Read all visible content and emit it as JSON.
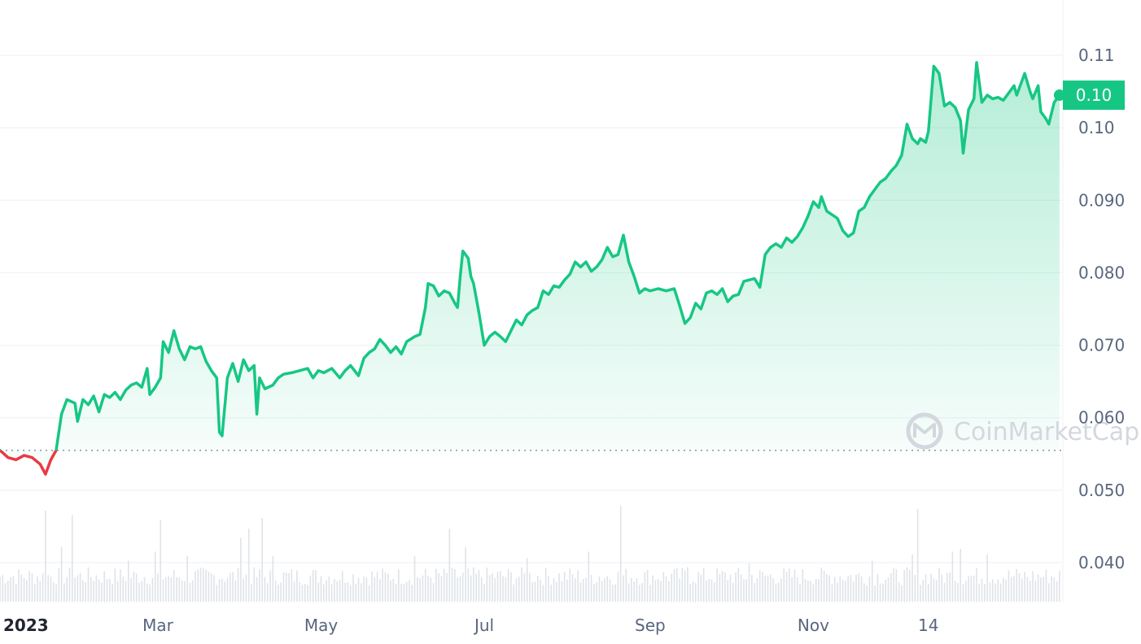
{
  "chart_data": {
    "type": "area",
    "watermark": "CoinMarketCap",
    "current_price_label": "0.10",
    "ylim": [
      0.035,
      0.1145
    ],
    "y_ticks": [
      {
        "value": 0.04,
        "label": "0.040"
      },
      {
        "value": 0.05,
        "label": "0.050"
      },
      {
        "value": 0.06,
        "label": "0.060"
      },
      {
        "value": 0.07,
        "label": "0.070"
      },
      {
        "value": 0.08,
        "label": "0.080"
      },
      {
        "value": 0.09,
        "label": "0.090"
      },
      {
        "value": 0.1,
        "label": "0.10"
      },
      {
        "value": 0.11,
        "label": "0.11"
      }
    ],
    "x_ticks": [
      {
        "day": 0,
        "label": "2023",
        "bold": true
      },
      {
        "day": 59,
        "label": "Mar",
        "bold": false
      },
      {
        "day": 120,
        "label": "May",
        "bold": false
      },
      {
        "day": 181,
        "label": "Jul",
        "bold": false
      },
      {
        "day": 243,
        "label": "Sep",
        "bold": false
      },
      {
        "day": 304,
        "label": "Nov",
        "bold": false
      },
      {
        "day": 347,
        "label": "14",
        "bold": false
      }
    ],
    "xlim": [
      0,
      386
    ],
    "baseline": 0.0555,
    "colors": {
      "up": "#16c784",
      "down": "#ea3943",
      "grid": "#eff2f5",
      "text": "#58667e"
    },
    "series": [
      {
        "points": [
          [
            0,
            0.0555
          ],
          [
            3,
            0.0545
          ],
          [
            6,
            0.0542
          ],
          [
            9,
            0.0548
          ],
          [
            12,
            0.0545
          ],
          [
            15,
            0.0536
          ],
          [
            17,
            0.0522
          ],
          [
            19,
            0.0542
          ],
          [
            21,
            0.0555
          ],
          [
            23,
            0.0605
          ],
          [
            25,
            0.0625
          ],
          [
            28,
            0.062
          ],
          [
            29,
            0.0595
          ],
          [
            31,
            0.0625
          ],
          [
            33,
            0.0618
          ],
          [
            35,
            0.063
          ],
          [
            37,
            0.0608
          ],
          [
            39,
            0.0632
          ],
          [
            41,
            0.0628
          ],
          [
            43,
            0.0635
          ],
          [
            45,
            0.0625
          ],
          [
            47,
            0.0638
          ],
          [
            49,
            0.0645
          ],
          [
            51,
            0.0648
          ],
          [
            53,
            0.0642
          ],
          [
            55,
            0.0668
          ],
          [
            56,
            0.0632
          ],
          [
            58,
            0.0642
          ],
          [
            60,
            0.0655
          ],
          [
            61,
            0.0705
          ],
          [
            63,
            0.069
          ],
          [
            65,
            0.072
          ],
          [
            67,
            0.0695
          ],
          [
            69,
            0.068
          ],
          [
            71,
            0.0698
          ],
          [
            73,
            0.0695
          ],
          [
            75,
            0.0698
          ],
          [
            77,
            0.0678
          ],
          [
            79,
            0.0665
          ],
          [
            81,
            0.0655
          ],
          [
            82,
            0.058
          ],
          [
            83,
            0.0575
          ],
          [
            85,
            0.0655
          ],
          [
            87,
            0.0675
          ],
          [
            89,
            0.065
          ],
          [
            91,
            0.068
          ],
          [
            93,
            0.0665
          ],
          [
            95,
            0.0672
          ],
          [
            96,
            0.0605
          ],
          [
            97,
            0.0655
          ],
          [
            99,
            0.064
          ],
          [
            102,
            0.0645
          ],
          [
            104,
            0.0655
          ],
          [
            106,
            0.066
          ],
          [
            109,
            0.0662
          ],
          [
            112,
            0.0665
          ],
          [
            115,
            0.0668
          ],
          [
            117,
            0.0655
          ],
          [
            119,
            0.0665
          ],
          [
            121,
            0.0662
          ],
          [
            124,
            0.0668
          ],
          [
            127,
            0.0655
          ],
          [
            129,
            0.0665
          ],
          [
            131,
            0.0672
          ],
          [
            134,
            0.0658
          ],
          [
            136,
            0.0682
          ],
          [
            138,
            0.069
          ],
          [
            140,
            0.0695
          ],
          [
            142,
            0.0708
          ],
          [
            144,
            0.07
          ],
          [
            146,
            0.069
          ],
          [
            148,
            0.0698
          ],
          [
            150,
            0.0688
          ],
          [
            152,
            0.0705
          ],
          [
            155,
            0.0712
          ],
          [
            157,
            0.0715
          ],
          [
            159,
            0.0752
          ],
          [
            160,
            0.0785
          ],
          [
            162,
            0.0782
          ],
          [
            164,
            0.0768
          ],
          [
            166,
            0.0775
          ],
          [
            168,
            0.0772
          ],
          [
            170,
            0.0758
          ],
          [
            171,
            0.0752
          ],
          [
            172,
            0.0795
          ],
          [
            173,
            0.083
          ],
          [
            175,
            0.082
          ],
          [
            176,
            0.0795
          ],
          [
            177,
            0.0785
          ],
          [
            179,
            0.0745
          ],
          [
            181,
            0.07
          ],
          [
            183,
            0.0712
          ],
          [
            185,
            0.0718
          ],
          [
            187,
            0.0712
          ],
          [
            189,
            0.0705
          ],
          [
            191,
            0.072
          ],
          [
            193,
            0.0735
          ],
          [
            195,
            0.0728
          ],
          [
            197,
            0.0742
          ],
          [
            199,
            0.0748
          ],
          [
            201,
            0.0752
          ],
          [
            203,
            0.0775
          ],
          [
            205,
            0.077
          ],
          [
            207,
            0.0782
          ],
          [
            209,
            0.078
          ],
          [
            211,
            0.079
          ],
          [
            213,
            0.0798
          ],
          [
            215,
            0.0815
          ],
          [
            217,
            0.0808
          ],
          [
            219,
            0.0815
          ],
          [
            221,
            0.0802
          ],
          [
            223,
            0.0808
          ],
          [
            225,
            0.0818
          ],
          [
            227,
            0.0835
          ],
          [
            229,
            0.0822
          ],
          [
            231,
            0.0825
          ],
          [
            233,
            0.0852
          ],
          [
            235,
            0.0815
          ],
          [
            237,
            0.0795
          ],
          [
            239,
            0.0772
          ],
          [
            241,
            0.0778
          ],
          [
            243,
            0.0775
          ],
          [
            246,
            0.0778
          ],
          [
            249,
            0.0775
          ],
          [
            252,
            0.0778
          ],
          [
            254,
            0.0755
          ],
          [
            256,
            0.073
          ],
          [
            258,
            0.0738
          ],
          [
            260,
            0.0758
          ],
          [
            262,
            0.075
          ],
          [
            264,
            0.0772
          ],
          [
            266,
            0.0775
          ],
          [
            268,
            0.077
          ],
          [
            270,
            0.0778
          ],
          [
            272,
            0.076
          ],
          [
            274,
            0.0768
          ],
          [
            276,
            0.077
          ],
          [
            278,
            0.0788
          ],
          [
            280,
            0.079
          ],
          [
            282,
            0.0792
          ],
          [
            284,
            0.078
          ],
          [
            286,
            0.0825
          ],
          [
            288,
            0.0835
          ],
          [
            290,
            0.084
          ],
          [
            292,
            0.0835
          ],
          [
            294,
            0.0848
          ],
          [
            296,
            0.0842
          ],
          [
            298,
            0.085
          ],
          [
            300,
            0.0862
          ],
          [
            302,
            0.0878
          ],
          [
            304,
            0.0898
          ],
          [
            306,
            0.089
          ],
          [
            307,
            0.0905
          ],
          [
            309,
            0.0885
          ],
          [
            311,
            0.088
          ],
          [
            313,
            0.0875
          ],
          [
            315,
            0.0858
          ],
          [
            317,
            0.085
          ],
          [
            319,
            0.0855
          ],
          [
            321,
            0.0885
          ],
          [
            323,
            0.089
          ],
          [
            325,
            0.0905
          ],
          [
            327,
            0.0915
          ],
          [
            329,
            0.0925
          ],
          [
            331,
            0.093
          ],
          [
            333,
            0.094
          ],
          [
            335,
            0.0948
          ],
          [
            337,
            0.0962
          ],
          [
            339,
            0.1005
          ],
          [
            341,
            0.0985
          ],
          [
            343,
            0.0978
          ],
          [
            344,
            0.0985
          ],
          [
            346,
            0.098
          ],
          [
            347,
            0.0995
          ],
          [
            349,
            0.1085
          ],
          [
            351,
            0.1075
          ],
          [
            353,
            0.103
          ],
          [
            355,
            0.1035
          ],
          [
            357,
            0.1028
          ],
          [
            359,
            0.101
          ],
          [
            360,
            0.0965
          ],
          [
            362,
            0.1025
          ],
          [
            364,
            0.104
          ],
          [
            365,
            0.109
          ],
          [
            367,
            0.1035
          ],
          [
            369,
            0.1045
          ],
          [
            371,
            0.104
          ],
          [
            373,
            0.1042
          ],
          [
            375,
            0.1038
          ],
          [
            377,
            0.1048
          ],
          [
            379,
            0.1058
          ],
          [
            380,
            0.1045
          ],
          [
            382,
            0.1065
          ],
          [
            383,
            0.1075
          ],
          [
            385,
            0.105
          ],
          [
            386,
            0.104
          ],
          [
            388,
            0.1058
          ],
          [
            389,
            0.1022
          ],
          [
            391,
            0.1012
          ],
          [
            392,
            0.1005
          ],
          [
            394,
            0.1035
          ],
          [
            396,
            0.1045
          ]
        ]
      }
    ],
    "volume": {
      "spikes": [
        [
          17,
          1.0
        ],
        [
          23,
          0.6
        ],
        [
          27,
          0.95
        ],
        [
          48,
          0.45
        ],
        [
          58,
          0.55
        ],
        [
          60,
          0.9
        ],
        [
          70,
          0.5
        ],
        [
          90,
          0.7
        ],
        [
          93,
          0.8
        ],
        [
          98,
          0.92
        ],
        [
          102,
          0.5
        ],
        [
          155,
          0.5
        ],
        [
          168,
          0.8
        ],
        [
          174,
          0.6
        ],
        [
          197,
          0.48
        ],
        [
          220,
          0.55
        ],
        [
          232,
          1.05
        ],
        [
          257,
          0.38
        ],
        [
          280,
          0.42
        ],
        [
          326,
          0.45
        ],
        [
          341,
          0.52
        ],
        [
          343,
          1.02
        ],
        [
          356,
          0.55
        ],
        [
          359,
          0.58
        ],
        [
          369,
          0.52
        ]
      ]
    }
  }
}
